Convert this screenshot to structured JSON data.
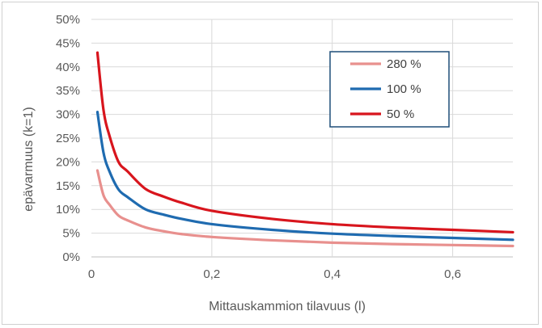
{
  "chart_data": {
    "type": "line",
    "xlabel": "Mittauskammion tilavuus (l)",
    "ylabel": "epävarmuus (k=1)",
    "xlim": [
      0,
      0.7
    ],
    "ylim": [
      0,
      0.5
    ],
    "x_ticks": [
      "0",
      "0,2",
      "0,4",
      "0,6"
    ],
    "y_ticks": [
      "0%",
      "5%",
      "10%",
      "15%",
      "20%",
      "25%",
      "30%",
      "35%",
      "40%",
      "45%",
      "50%"
    ],
    "grid": true,
    "legend_position": "top-right",
    "series": [
      {
        "name": "280 %",
        "color": "#e8908e",
        "x": [
          0.01,
          0.02,
          0.03,
          0.045,
          0.06,
          0.09,
          0.12,
          0.15,
          0.2,
          0.3,
          0.4,
          0.5,
          0.6,
          0.7
        ],
        "y": [
          0.182,
          0.13,
          0.11,
          0.087,
          0.077,
          0.062,
          0.054,
          0.048,
          0.042,
          0.035,
          0.03,
          0.027,
          0.025,
          0.023
        ]
      },
      {
        "name": "100 %",
        "color": "#1f6bb0",
        "x": [
          0.01,
          0.02,
          0.03,
          0.045,
          0.06,
          0.09,
          0.12,
          0.15,
          0.2,
          0.3,
          0.4,
          0.5,
          0.6,
          0.7
        ],
        "y": [
          0.305,
          0.22,
          0.18,
          0.142,
          0.126,
          0.1,
          0.089,
          0.08,
          0.069,
          0.057,
          0.049,
          0.044,
          0.04,
          0.036
        ]
      },
      {
        "name": "50 %",
        "color": "#d8151d",
        "x": [
          0.01,
          0.02,
          0.03,
          0.045,
          0.06,
          0.09,
          0.12,
          0.15,
          0.2,
          0.3,
          0.4,
          0.5,
          0.6,
          0.7
        ],
        "y": [
          0.43,
          0.31,
          0.255,
          0.2,
          0.18,
          0.143,
          0.127,
          0.114,
          0.097,
          0.08,
          0.069,
          0.062,
          0.057,
          0.052
        ]
      }
    ]
  }
}
